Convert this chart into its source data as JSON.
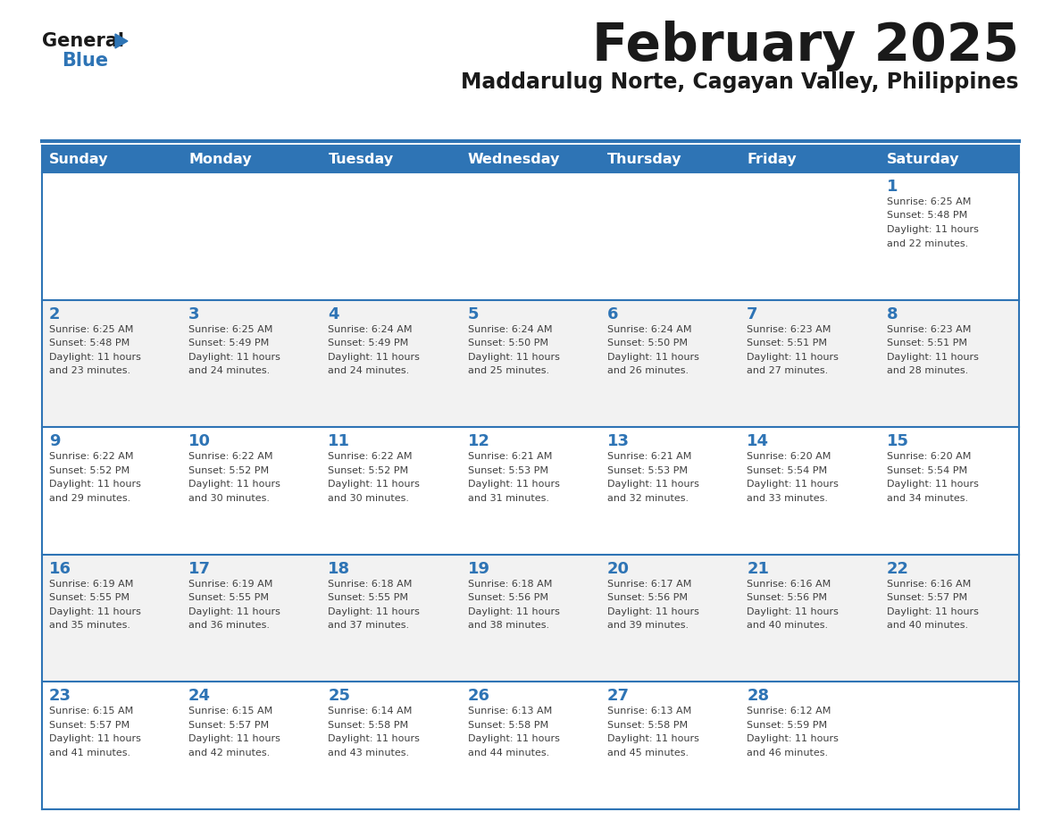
{
  "title": "February 2025",
  "subtitle": "Maddarulug Norte, Cagayan Valley, Philippines",
  "days_of_week": [
    "Sunday",
    "Monday",
    "Tuesday",
    "Wednesday",
    "Thursday",
    "Friday",
    "Saturday"
  ],
  "header_bg": "#2E74B5",
  "header_text": "#FFFFFF",
  "cell_bg_even": "#FFFFFF",
  "cell_bg_odd": "#F2F2F2",
  "day_number_color": "#2E74B5",
  "text_color": "#404040",
  "border_color": "#2E74B5",
  "title_color": "#1A1A1A",
  "logo_general_color": "#1A1A1A",
  "logo_blue_color": "#2E74B5",
  "logo_triangle_color": "#2E74B5",
  "calendar_data": [
    [
      null,
      null,
      null,
      null,
      null,
      null,
      {
        "day": 1,
        "sunrise": "6:25 AM",
        "sunset": "5:48 PM",
        "daylight": "11 hours and 22 minutes"
      }
    ],
    [
      {
        "day": 2,
        "sunrise": "6:25 AM",
        "sunset": "5:48 PM",
        "daylight": "11 hours and 23 minutes"
      },
      {
        "day": 3,
        "sunrise": "6:25 AM",
        "sunset": "5:49 PM",
        "daylight": "11 hours and 24 minutes"
      },
      {
        "day": 4,
        "sunrise": "6:24 AM",
        "sunset": "5:49 PM",
        "daylight": "11 hours and 24 minutes"
      },
      {
        "day": 5,
        "sunrise": "6:24 AM",
        "sunset": "5:50 PM",
        "daylight": "11 hours and 25 minutes"
      },
      {
        "day": 6,
        "sunrise": "6:24 AM",
        "sunset": "5:50 PM",
        "daylight": "11 hours and 26 minutes"
      },
      {
        "day": 7,
        "sunrise": "6:23 AM",
        "sunset": "5:51 PM",
        "daylight": "11 hours and 27 minutes"
      },
      {
        "day": 8,
        "sunrise": "6:23 AM",
        "sunset": "5:51 PM",
        "daylight": "11 hours and 28 minutes"
      }
    ],
    [
      {
        "day": 9,
        "sunrise": "6:22 AM",
        "sunset": "5:52 PM",
        "daylight": "11 hours and 29 minutes"
      },
      {
        "day": 10,
        "sunrise": "6:22 AM",
        "sunset": "5:52 PM",
        "daylight": "11 hours and 30 minutes"
      },
      {
        "day": 11,
        "sunrise": "6:22 AM",
        "sunset": "5:52 PM",
        "daylight": "11 hours and 30 minutes"
      },
      {
        "day": 12,
        "sunrise": "6:21 AM",
        "sunset": "5:53 PM",
        "daylight": "11 hours and 31 minutes"
      },
      {
        "day": 13,
        "sunrise": "6:21 AM",
        "sunset": "5:53 PM",
        "daylight": "11 hours and 32 minutes"
      },
      {
        "day": 14,
        "sunrise": "6:20 AM",
        "sunset": "5:54 PM",
        "daylight": "11 hours and 33 minutes"
      },
      {
        "day": 15,
        "sunrise": "6:20 AM",
        "sunset": "5:54 PM",
        "daylight": "11 hours and 34 minutes"
      }
    ],
    [
      {
        "day": 16,
        "sunrise": "6:19 AM",
        "sunset": "5:55 PM",
        "daylight": "11 hours and 35 minutes"
      },
      {
        "day": 17,
        "sunrise": "6:19 AM",
        "sunset": "5:55 PM",
        "daylight": "11 hours and 36 minutes"
      },
      {
        "day": 18,
        "sunrise": "6:18 AM",
        "sunset": "5:55 PM",
        "daylight": "11 hours and 37 minutes"
      },
      {
        "day": 19,
        "sunrise": "6:18 AM",
        "sunset": "5:56 PM",
        "daylight": "11 hours and 38 minutes"
      },
      {
        "day": 20,
        "sunrise": "6:17 AM",
        "sunset": "5:56 PM",
        "daylight": "11 hours and 39 minutes"
      },
      {
        "day": 21,
        "sunrise": "6:16 AM",
        "sunset": "5:56 PM",
        "daylight": "11 hours and 40 minutes"
      },
      {
        "day": 22,
        "sunrise": "6:16 AM",
        "sunset": "5:57 PM",
        "daylight": "11 hours and 40 minutes"
      }
    ],
    [
      {
        "day": 23,
        "sunrise": "6:15 AM",
        "sunset": "5:57 PM",
        "daylight": "11 hours and 41 minutes"
      },
      {
        "day": 24,
        "sunrise": "6:15 AM",
        "sunset": "5:57 PM",
        "daylight": "11 hours and 42 minutes"
      },
      {
        "day": 25,
        "sunrise": "6:14 AM",
        "sunset": "5:58 PM",
        "daylight": "11 hours and 43 minutes"
      },
      {
        "day": 26,
        "sunrise": "6:13 AM",
        "sunset": "5:58 PM",
        "daylight": "11 hours and 44 minutes"
      },
      {
        "day": 27,
        "sunrise": "6:13 AM",
        "sunset": "5:58 PM",
        "daylight": "11 hours and 45 minutes"
      },
      {
        "day": 28,
        "sunrise": "6:12 AM",
        "sunset": "5:59 PM",
        "daylight": "11 hours and 46 minutes"
      },
      null
    ]
  ],
  "fig_width": 11.88,
  "fig_height": 9.18,
  "dpi": 100
}
